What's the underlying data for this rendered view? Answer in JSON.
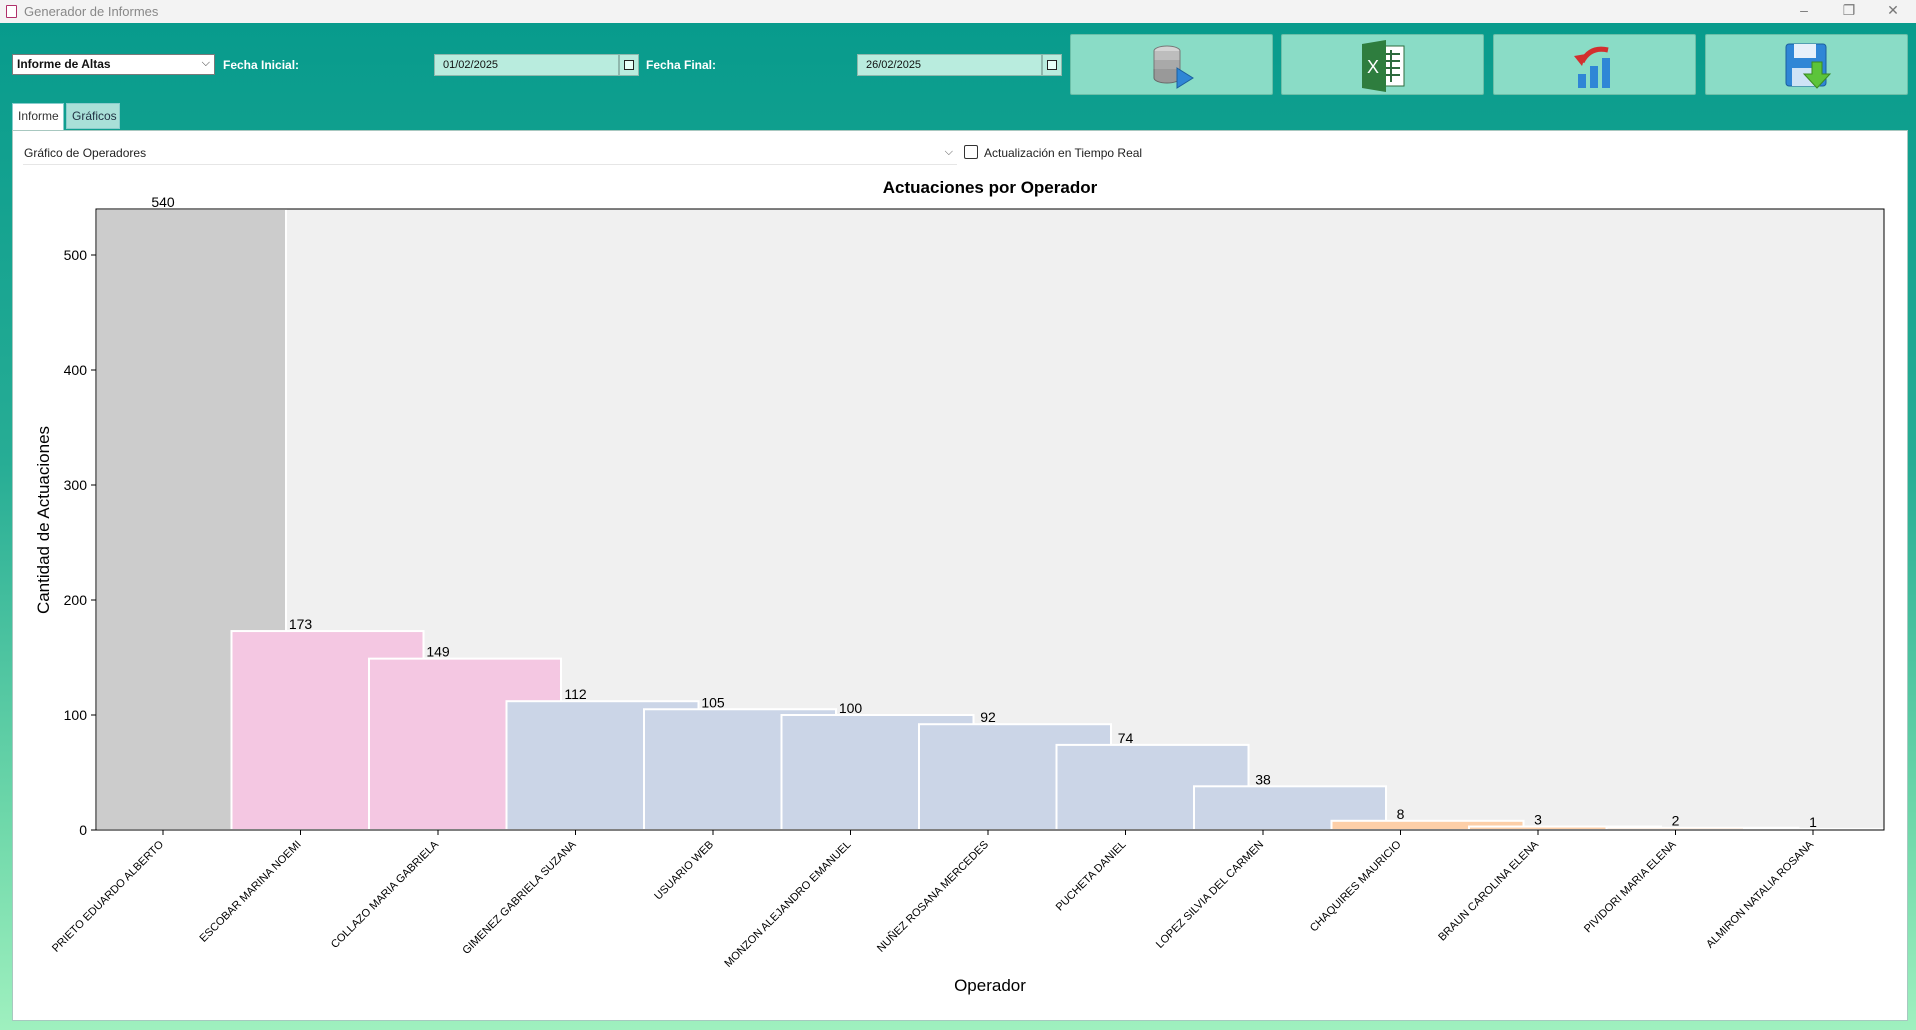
{
  "window": {
    "title": "Generador de Informes",
    "minimize": "–",
    "restore": "❐",
    "close": "✕"
  },
  "toolbar": {
    "report_type": "Informe de Altas",
    "fecha_inicial_label": "Fecha Inicial:",
    "fecha_inicial": "01/02/2025",
    "fecha_final_label": "Fecha Final:",
    "fecha_final": "26/02/2025",
    "buttons": [
      "database-play-icon",
      "excel-icon",
      "chart-refresh-icon",
      "save-download-icon"
    ]
  },
  "tabs": [
    {
      "label": "Informe",
      "active": true
    },
    {
      "label": "Gráficos",
      "active": false
    }
  ],
  "controls": {
    "chart_selector": "Gráfico de Operadores",
    "realtime_label": "Actualización en Tiempo Real",
    "realtime_checked": false
  },
  "chart_data": {
    "type": "bar",
    "title": "Actuaciones por Operador",
    "xlabel": "Operador",
    "ylabel": "Cantidad de Actuaciones",
    "ylim": [
      0,
      540
    ],
    "yticks": [
      0,
      100,
      200,
      300,
      400,
      500
    ],
    "categories": [
      "PRIETO EDUARDO ALBERTO",
      "ESCOBAR MARINA NOEMI",
      "COLLAZO MARIA GABRIELA",
      "GIMENEZ GABRIELA SUZANA",
      "USUARIO WEB",
      "MONZON ALEJANDRO EMANUEL",
      "NUÑEZ ROSANA MERCEDES",
      "PUCHETA DANIEL",
      "LOPEZ SILVIA DEL CARMEN",
      "CHAQUIRES MAURICIO",
      "BRAUN CAROLINA ELENA",
      "PIVIDORI MARIA ELENA",
      "ALMIRON NATALIA ROSANA"
    ],
    "values": [
      540,
      173,
      149,
      112,
      105,
      100,
      92,
      74,
      38,
      8,
      3,
      2,
      1
    ],
    "bar_colors": [
      "#cccccc",
      "#f4c7e2",
      "#f4c7e2",
      "#cbd5e7",
      "#cbd5e7",
      "#cbd5e7",
      "#cbd5e7",
      "#cbd5e7",
      "#cbd5e7",
      "#fdcfa8",
      "#fdcfa8",
      "#fdcfa8",
      "#fdcfa8"
    ],
    "plot_background": "#f0f0f0",
    "grid": false
  }
}
